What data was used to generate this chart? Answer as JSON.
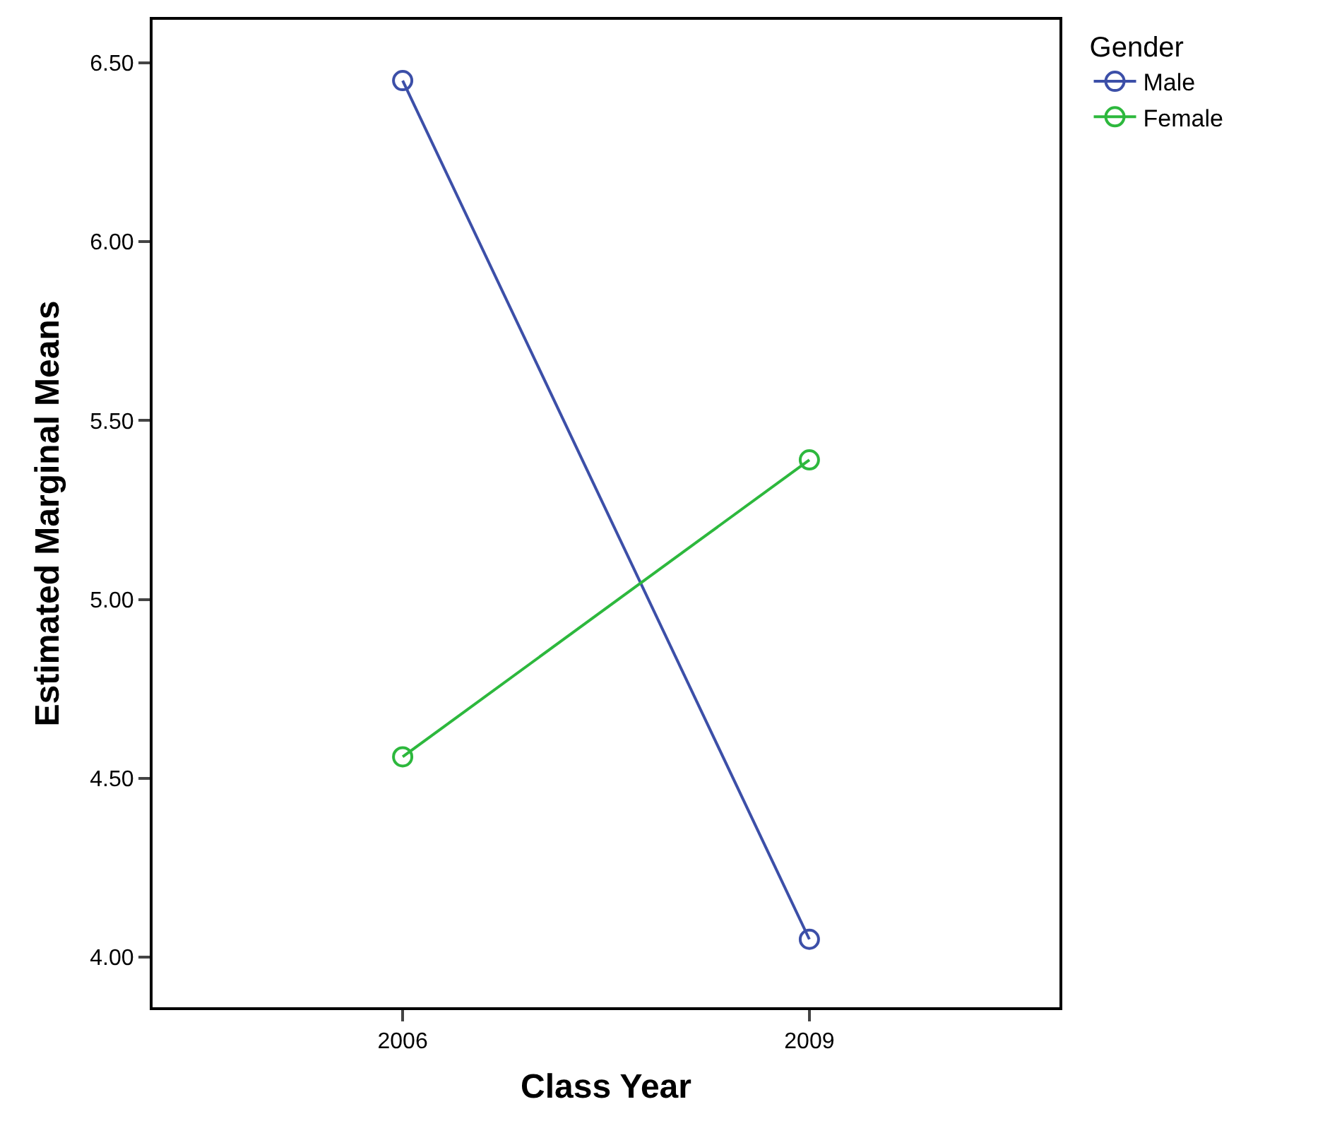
{
  "chart_data": {
    "type": "line",
    "xlabel": "Class Year",
    "ylabel": "Estimated Marginal Means",
    "legend_title": "Gender",
    "categories": [
      "2006",
      "2009"
    ],
    "series": [
      {
        "name": "Male",
        "color": "#3c4fa8",
        "values": [
          6.45,
          4.05
        ]
      },
      {
        "name": "Female",
        "color": "#2db83d",
        "values": [
          4.56,
          5.39
        ]
      }
    ],
    "ylim": [
      3.86,
      6.62
    ],
    "yticks": [
      {
        "value": 4.0,
        "label": "4.00"
      },
      {
        "value": 4.5,
        "label": "4.50"
      },
      {
        "value": 5.0,
        "label": "5.00"
      },
      {
        "value": 5.5,
        "label": "5.50"
      },
      {
        "value": 6.0,
        "label": "6.00"
      },
      {
        "value": 6.5,
        "label": "6.50"
      }
    ],
    "legend": "top right",
    "marker": "circle",
    "line_style": "solid"
  }
}
